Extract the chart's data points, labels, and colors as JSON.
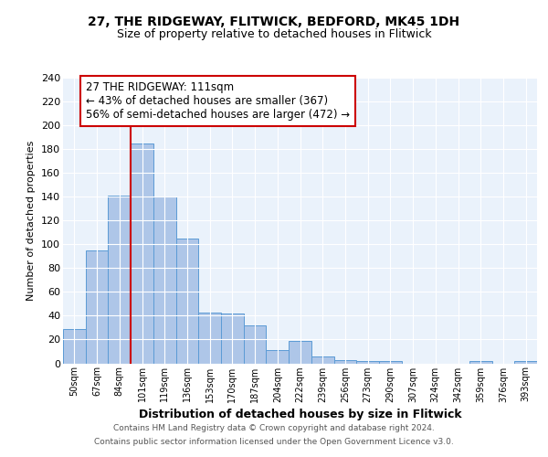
{
  "title1": "27, THE RIDGEWAY, FLITWICK, BEDFORD, MK45 1DH",
  "title2": "Size of property relative to detached houses in Flitwick",
  "xlabel": "Distribution of detached houses by size in Flitwick",
  "ylabel": "Number of detached properties",
  "bins": [
    "50sqm",
    "67sqm",
    "84sqm",
    "101sqm",
    "119sqm",
    "136sqm",
    "153sqm",
    "170sqm",
    "187sqm",
    "204sqm",
    "222sqm",
    "239sqm",
    "256sqm",
    "273sqm",
    "290sqm",
    "307sqm",
    "324sqm",
    "342sqm",
    "359sqm",
    "376sqm",
    "393sqm"
  ],
  "values": [
    29,
    95,
    141,
    185,
    140,
    105,
    43,
    42,
    32,
    11,
    19,
    6,
    3,
    2,
    2,
    0,
    0,
    0,
    2,
    0,
    2
  ],
  "bar_color": "#aec6e8",
  "bar_edge_color": "#5b9bd5",
  "vline_color": "#cc0000",
  "vline_bin": 3,
  "annotation_text": "27 THE RIDGEWAY: 111sqm\n← 43% of detached houses are smaller (367)\n56% of semi-detached houses are larger (472) →",
  "annotation_box_color": "#cc0000",
  "footer1": "Contains HM Land Registry data © Crown copyright and database right 2024.",
  "footer2": "Contains public sector information licensed under the Open Government Licence v3.0.",
  "ylim": [
    0,
    240
  ],
  "yticks": [
    0,
    20,
    40,
    60,
    80,
    100,
    120,
    140,
    160,
    180,
    200,
    220,
    240
  ],
  "bg_color": "#eaf2fb",
  "fig_bg_color": "#ffffff",
  "title1_fontsize": 10,
  "title2_fontsize": 9
}
